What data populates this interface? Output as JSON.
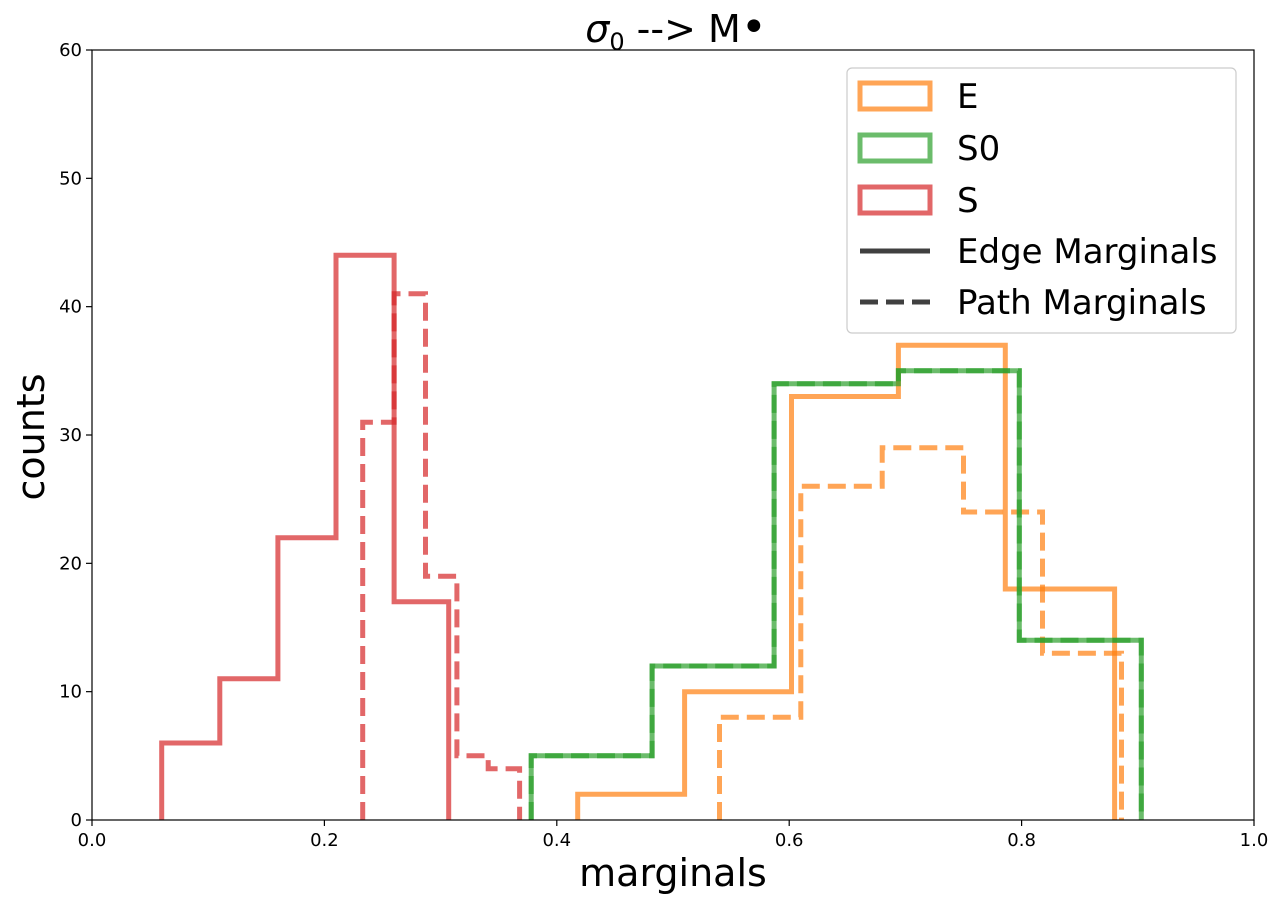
{
  "chart_data": {
    "type": "histogram-step",
    "title_main": "σ",
    "title_sub": "0",
    "title_rest": " --> M",
    "title_suffix": "•",
    "xlabel": "marginals",
    "ylabel": "counts",
    "xlim": [
      0.0,
      1.0
    ],
    "ylim": [
      0,
      60
    ],
    "xticks": [
      0.0,
      0.2,
      0.4,
      0.6,
      0.8,
      1.0
    ],
    "xtick_labels": [
      "0.0",
      "0.2",
      "0.4",
      "0.6",
      "0.8",
      "1.0"
    ],
    "yticks": [
      0,
      10,
      20,
      30,
      40,
      50,
      60
    ],
    "ytick_labels": [
      "0",
      "10",
      "20",
      "30",
      "40",
      "50",
      "60"
    ],
    "legend_position": "top-right",
    "legend": [
      {
        "label": "E",
        "kind": "patch",
        "color": "#ff7f0e"
      },
      {
        "label": "S0",
        "kind": "patch",
        "color": "#2ca02c"
      },
      {
        "label": "S",
        "kind": "patch",
        "color": "#d62728"
      },
      {
        "label": "Edge Marginals",
        "kind": "line",
        "style": "solid",
        "color": "#404040"
      },
      {
        "label": "Path Marginals",
        "kind": "line",
        "style": "dashed",
        "color": "#404040"
      }
    ],
    "series": [
      {
        "name": "S",
        "type": "Edge Marginals",
        "style": "solid",
        "color": "#d62728",
        "edges": [
          0.06,
          0.11,
          0.16,
          0.21,
          0.26,
          0.307
        ],
        "counts": [
          6,
          11,
          22,
          44,
          17
        ]
      },
      {
        "name": "S",
        "type": "Path Marginals",
        "style": "dashed",
        "color": "#d62728",
        "edges": [
          0.233,
          0.26,
          0.287,
          0.314,
          0.341,
          0.368
        ],
        "counts": [
          31,
          41,
          19,
          5,
          4
        ]
      },
      {
        "name": "E",
        "type": "Edge Marginals",
        "style": "solid",
        "color": "#ff7f0e",
        "edges": [
          0.418,
          0.51,
          0.602,
          0.694,
          0.786,
          0.88
        ],
        "counts": [
          2,
          10,
          33,
          37,
          18
        ]
      },
      {
        "name": "E",
        "type": "Path Marginals",
        "style": "dashed",
        "color": "#ff7f0e",
        "edges": [
          0.54,
          0.61,
          0.68,
          0.75,
          0.818,
          0.886
        ],
        "counts": [
          8,
          26,
          29,
          24,
          13
        ]
      },
      {
        "name": "S0",
        "type": "Edge Marginals",
        "style": "solid",
        "color": "#2ca02c",
        "edges": [
          0.378,
          0.482,
          0.587,
          0.694,
          0.798,
          0.903
        ],
        "counts": [
          5,
          12,
          34,
          35,
          14
        ]
      },
      {
        "name": "S0",
        "type": "Path Marginals",
        "style": "dashed",
        "color": "#2ca02c",
        "edges": [
          0.378,
          0.482,
          0.587,
          0.694,
          0.798,
          0.903
        ],
        "counts": [
          5,
          12,
          34,
          35,
          14
        ]
      }
    ]
  }
}
